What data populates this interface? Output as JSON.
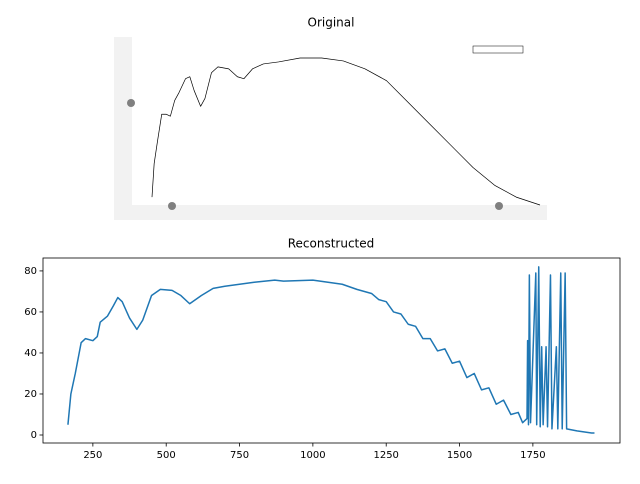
{
  "chart_data": [
    {
      "type": "image-line",
      "title": "Original",
      "x": [
        165,
        175,
        190,
        210,
        230,
        250,
        270,
        290,
        320,
        340,
        360,
        390,
        410,
        440,
        470,
        520,
        560,
        590,
        630,
        680,
        750,
        850,
        950,
        1050,
        1150,
        1250,
        1350,
        1450,
        1550,
        1650,
        1750,
        1850,
        1960
      ],
      "values": [
        5,
        22,
        33,
        47,
        47,
        46,
        54,
        58,
        65,
        66,
        59,
        51,
        55,
        68,
        71,
        70,
        66,
        65,
        70,
        72.5,
        73.5,
        75.5,
        75.5,
        74,
        70,
        64,
        53,
        42,
        31,
        20,
        11,
        5,
        1
      ],
      "color": "#000000"
    },
    {
      "type": "line",
      "title": "Reconstructed",
      "x": [
        165,
        175,
        190,
        210,
        225,
        250,
        265,
        275,
        300,
        320,
        335,
        350,
        375,
        400,
        420,
        450,
        480,
        520,
        550,
        580,
        620,
        660,
        700,
        750,
        800,
        870,
        900,
        1000,
        1100,
        1150,
        1200,
        1225,
        1250,
        1275,
        1300,
        1325,
        1350,
        1375,
        1400,
        1425,
        1450,
        1475,
        1500,
        1525,
        1550,
        1575,
        1600,
        1625,
        1650,
        1675,
        1700,
        1715,
        1730,
        1732,
        1735,
        1738,
        1742,
        1760,
        1763,
        1770,
        1775,
        1780,
        1785,
        1795,
        1800,
        1810,
        1815,
        1830,
        1835,
        1845,
        1850,
        1860,
        1865,
        1900,
        1950,
        1960
      ],
      "values": [
        5,
        20,
        30,
        45,
        47,
        46,
        48,
        55,
        58,
        63,
        67,
        65,
        57,
        51.5,
        56,
        68,
        71,
        70.5,
        68,
        64,
        68,
        71.5,
        72.5,
        73.5,
        74.5,
        75.5,
        75,
        75.5,
        73.5,
        71,
        69,
        66,
        65,
        60,
        59,
        54,
        53,
        47,
        47,
        41,
        42,
        35,
        36,
        28,
        30,
        22,
        23,
        15,
        17,
        10,
        11,
        6,
        8,
        46,
        5,
        78,
        6,
        79,
        5,
        82,
        4,
        43,
        5,
        43,
        4,
        78,
        3,
        43,
        3,
        79,
        3,
        79,
        3,
        2,
        1,
        1
      ],
      "color": "#1f77b4",
      "xlim": [
        80,
        2047
      ],
      "ylim": [
        -3.9,
        86.3
      ],
      "xticks": [
        250,
        500,
        750,
        1000,
        1250,
        1500,
        1750
      ],
      "yticks": [
        0,
        20,
        40,
        60,
        80
      ]
    }
  ]
}
